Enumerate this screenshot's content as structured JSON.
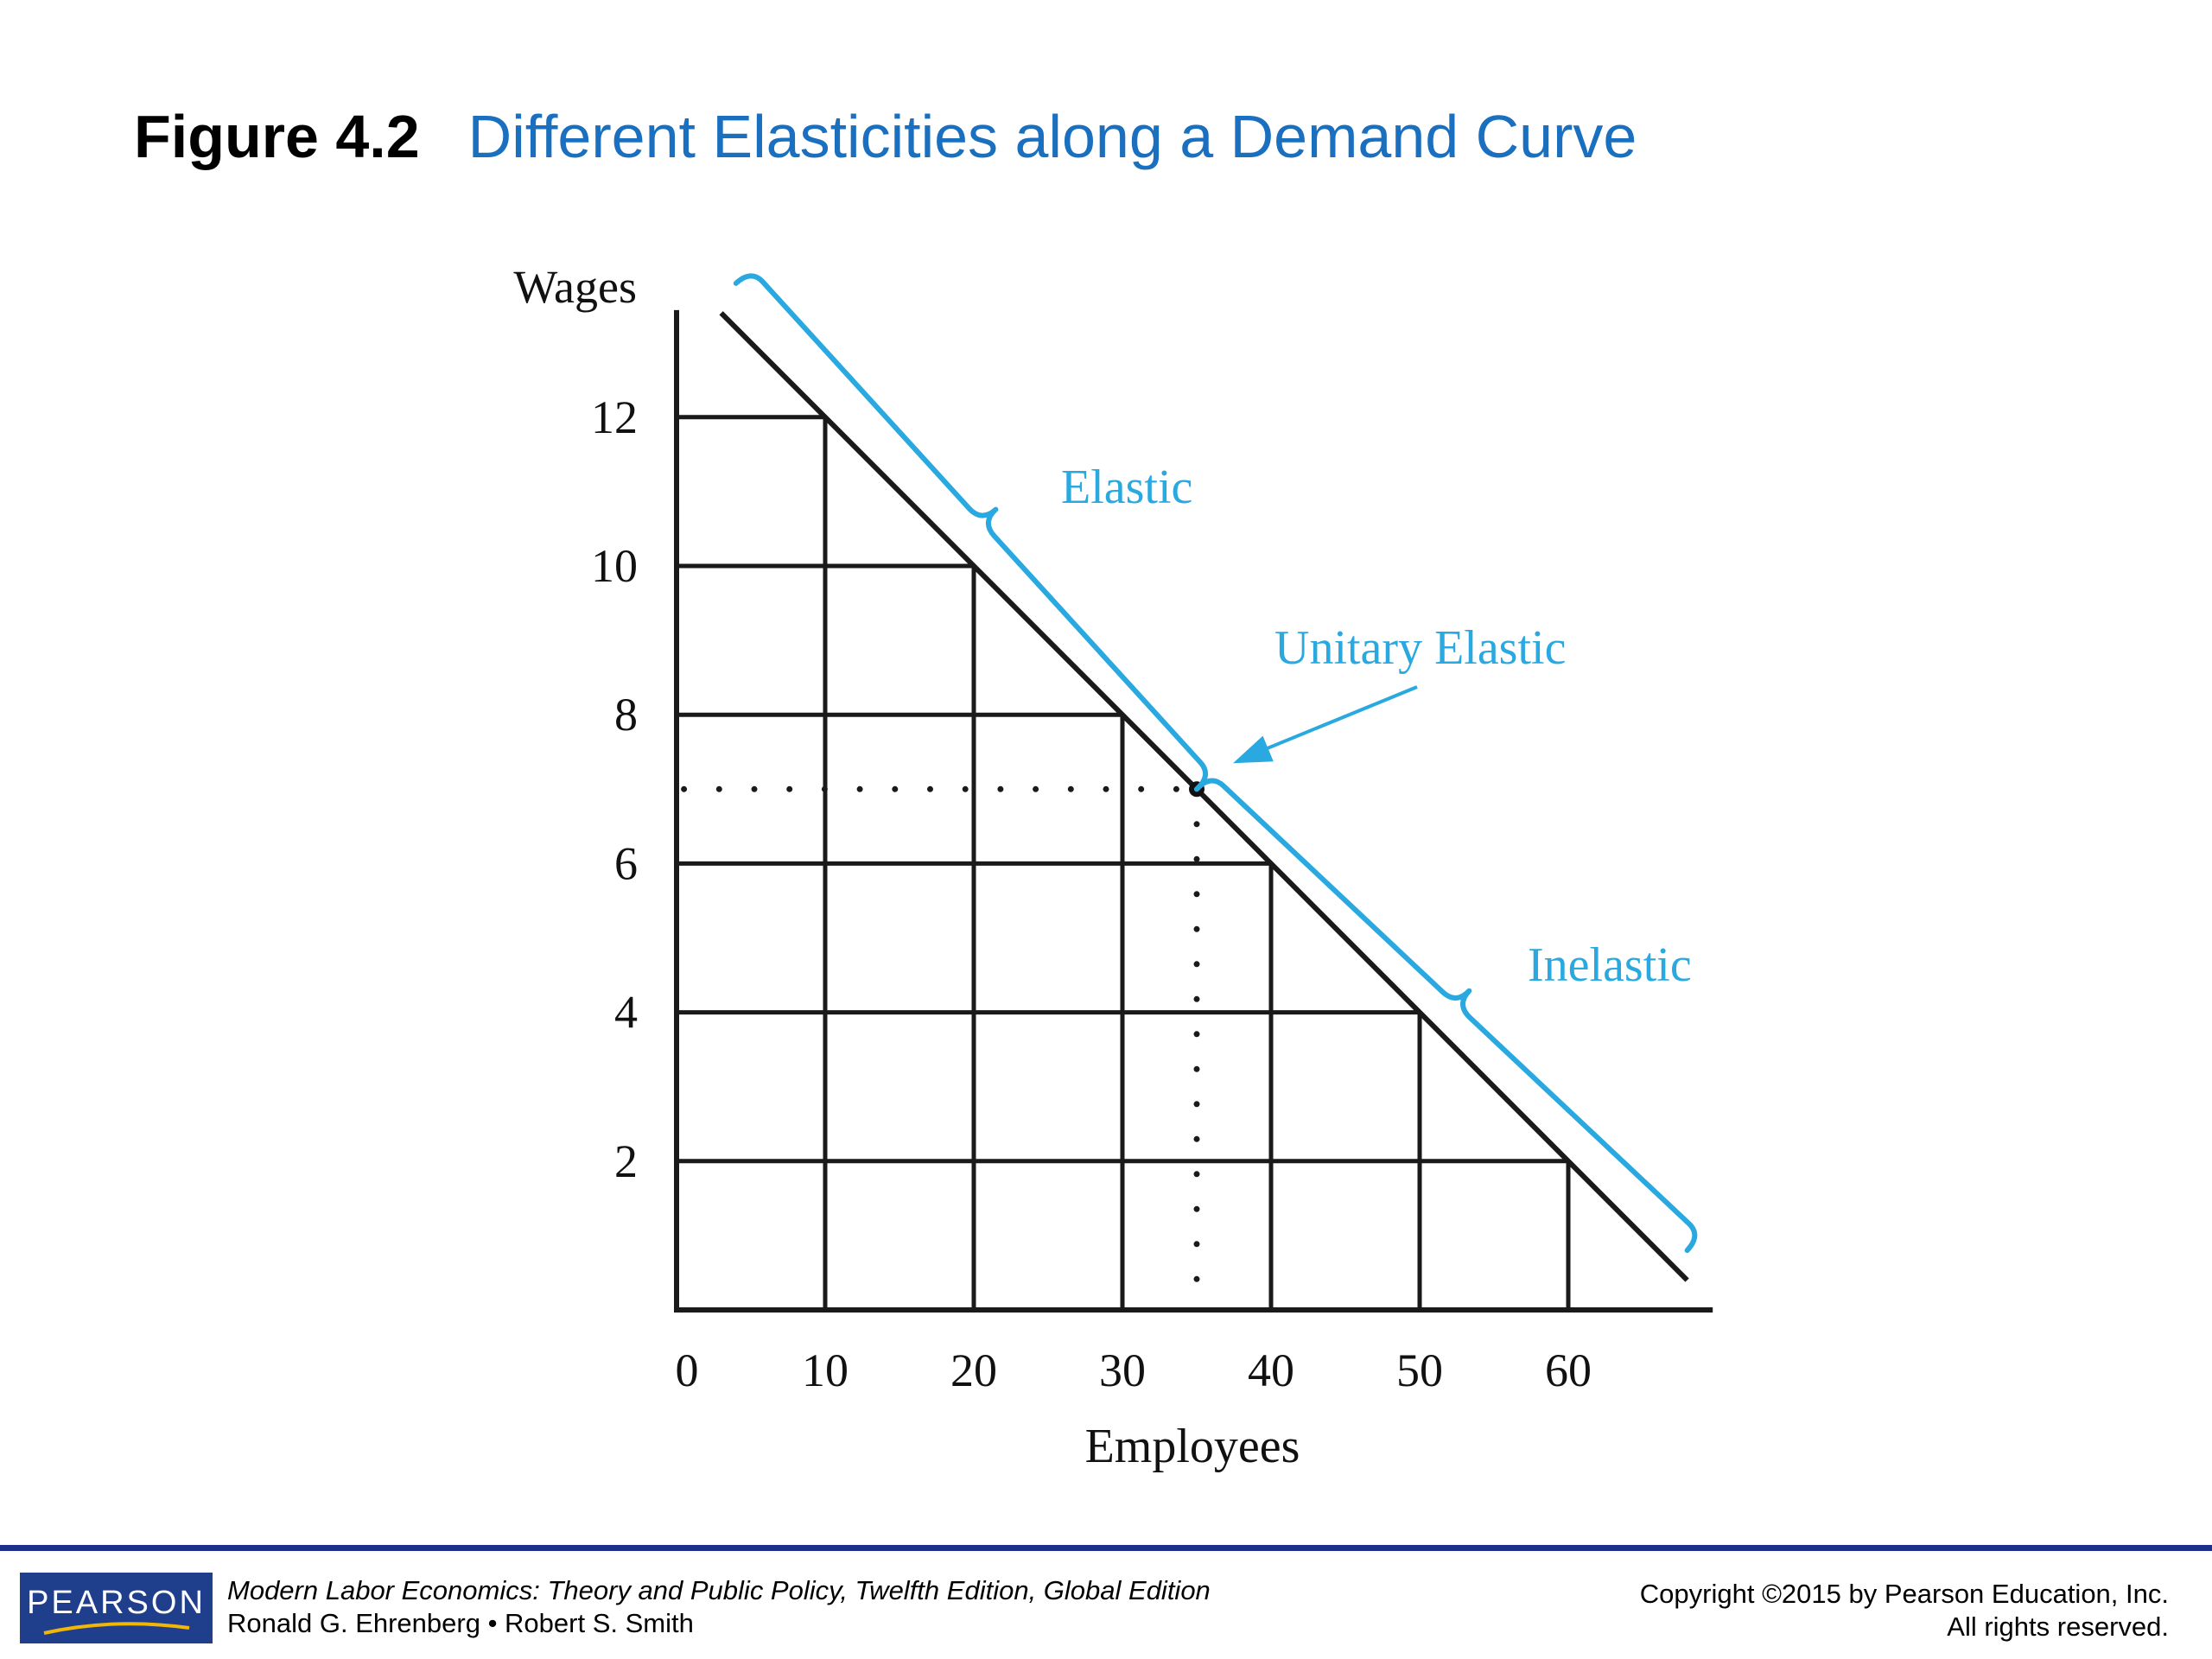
{
  "title": {
    "figure_number": "Figure 4.2",
    "figure_name": "Different Elasticities along a Demand Curve"
  },
  "colors": {
    "accent": "#29a9e0",
    "title_blue": "#1a6fbf",
    "footer_rule": "#1c2f8a",
    "logo_bg": "#1f3f8c"
  },
  "chart_data": {
    "type": "line",
    "xlabel": "Employees",
    "ylabel": "Wages",
    "x_ticks": [
      "0",
      "10",
      "20",
      "30",
      "40",
      "50",
      "60"
    ],
    "y_ticks": [
      "2",
      "4",
      "6",
      "8",
      "10",
      "12"
    ],
    "xlim": [
      0,
      70
    ],
    "ylim": [
      0,
      14
    ],
    "grid": true,
    "series": [
      {
        "name": "",
        "points": [
          [
            3,
            13.4
          ],
          [
            68,
            0.4
          ]
        ]
      }
    ],
    "marked_point": {
      "x": 35,
      "y": 7
    },
    "annotations": [
      {
        "label": "Elastic",
        "from": [
          4,
          13.8
        ],
        "to": [
          35,
          7
        ],
        "color": "#29a9e0"
      },
      {
        "label": "Unitary Elastic",
        "target": [
          35,
          7
        ],
        "color": "#29a9e0"
      },
      {
        "label": "Inelastic",
        "from": [
          35,
          7
        ],
        "to": [
          68,
          0.8
        ],
        "color": "#29a9e0"
      }
    ]
  },
  "footer": {
    "logo": "PEARSON",
    "book_title": "Modern Labor Economics: Theory and Public Policy, Twelfth Edition, Global Edition",
    "authors": "Ronald G. Ehrenberg • Robert S. Smith",
    "copyright_line1": "Copyright ©2015 by Pearson Education, Inc.",
    "copyright_line2": "All rights reserved."
  }
}
